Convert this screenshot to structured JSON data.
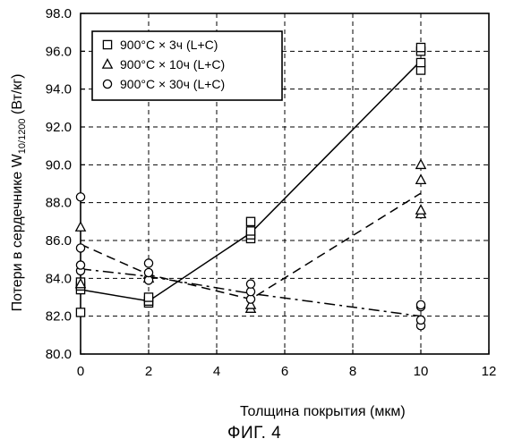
{
  "chart_data": {
    "type": "scatter",
    "xlabel": "Толщина покрытия (мкм)",
    "ylabel": "Потери в сердечнике W",
    "ylabel_sub": "10/1200",
    "ylabel_unit": " (Вт/кг)",
    "xlim": [
      0,
      12
    ],
    "ylim": [
      80,
      98
    ],
    "x_ticks": [
      "0",
      "2",
      "4",
      "6",
      "8",
      "10",
      "12"
    ],
    "y_ticks": [
      "80.0",
      "82.0",
      "84.0",
      "86.0",
      "88.0",
      "90.0",
      "92.0",
      "94.0",
      "96.0",
      "98.0"
    ],
    "grid": true,
    "legend_position": "top-left",
    "series": [
      {
        "name": "900°C × 3ч (L+C)",
        "marker": "square",
        "line": "solid",
        "points": [
          [
            0,
            82.2
          ],
          [
            0,
            83.4
          ],
          [
            0,
            83.6
          ],
          [
            0,
            83.8
          ],
          [
            2,
            82.7
          ],
          [
            2,
            82.8
          ],
          [
            2,
            83.0
          ],
          [
            5,
            86.1
          ],
          [
            5,
            86.3
          ],
          [
            5,
            86.5
          ],
          [
            5,
            87.0
          ],
          [
            10,
            95.0
          ],
          [
            10,
            95.4
          ],
          [
            10,
            96.0
          ],
          [
            10,
            96.2
          ]
        ],
        "fit": [
          [
            0,
            83.4
          ],
          [
            2,
            82.8
          ],
          [
            5,
            86.4
          ],
          [
            10,
            95.5
          ]
        ]
      },
      {
        "name": "900°C × 10ч (L+C)",
        "marker": "triangle",
        "line": "dashed",
        "points": [
          [
            0,
            83.7
          ],
          [
            0,
            86.7
          ],
          [
            2,
            84.0
          ],
          [
            2,
            84.2
          ],
          [
            5,
            82.4
          ],
          [
            5,
            82.6
          ],
          [
            10,
            87.4
          ],
          [
            10,
            87.6
          ],
          [
            10,
            89.2
          ],
          [
            10,
            90.0
          ]
        ],
        "fit": [
          [
            0,
            85.8
          ],
          [
            2,
            84.2
          ],
          [
            5,
            82.9
          ],
          [
            10,
            88.5
          ]
        ]
      },
      {
        "name": "900°C × 30ч (L+C)",
        "marker": "circle",
        "line": "dashdot",
        "points": [
          [
            0,
            84.4
          ],
          [
            0,
            84.7
          ],
          [
            0,
            85.6
          ],
          [
            0,
            88.3
          ],
          [
            2,
            83.9
          ],
          [
            2,
            84.3
          ],
          [
            2,
            84.8
          ],
          [
            5,
            82.9
          ],
          [
            5,
            83.3
          ],
          [
            5,
            83.7
          ],
          [
            10,
            81.5
          ],
          [
            10,
            81.8
          ],
          [
            10,
            82.5
          ],
          [
            10,
            82.6
          ]
        ],
        "fit": [
          [
            0,
            84.5
          ],
          [
            2,
            84.1
          ],
          [
            5,
            83.2
          ],
          [
            10,
            82.0
          ]
        ]
      }
    ]
  },
  "caption": "ФИГ. 4"
}
